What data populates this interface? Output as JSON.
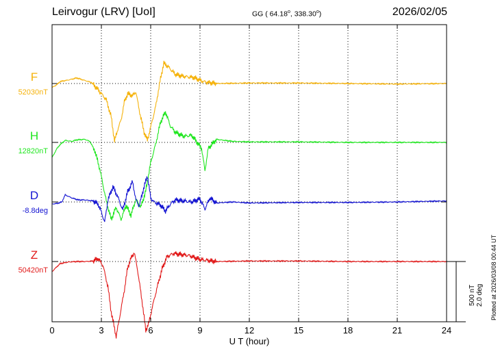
{
  "header": {
    "station": "Leirvogur (LRV)  [UoI]",
    "coords_prefix": "GG ( 64.18",
    "coords_mid": ", 338.30",
    "coords_suffix": ")",
    "degree_symbol": "o",
    "date": "2026/02/05"
  },
  "side": {
    "plotted_at": "Plotted at 2026/03/08 00:44 UT",
    "scale_nt": "500 nT",
    "scale_deg": "2.0 deg"
  },
  "chart_data": {
    "type": "line",
    "title": "",
    "xlabel": "U T (hour)",
    "xlim": [
      0,
      24
    ],
    "x_ticks": [
      0,
      3,
      6,
      9,
      12,
      15,
      18,
      21,
      24
    ],
    "grid": true,
    "series": [
      {
        "name": "F",
        "baseline_label": "52030nT",
        "color": "#f5b20a",
        "points": [
          [
            0,
            -40
          ],
          [
            0.3,
            -10
          ],
          [
            0.5,
            20
          ],
          [
            1,
            35
          ],
          [
            1.5,
            55
          ],
          [
            2,
            30
          ],
          [
            2.4,
            10
          ],
          [
            2.8,
            -60
          ],
          [
            3,
            -100
          ],
          [
            3.3,
            -160
          ],
          [
            3.6,
            -330
          ],
          [
            3.8,
            -570
          ],
          [
            4,
            -450
          ],
          [
            4.2,
            -360
          ],
          [
            4.4,
            -180
          ],
          [
            4.6,
            -100
          ],
          [
            4.9,
            -120
          ],
          [
            5.1,
            -80
          ],
          [
            5.3,
            -260
          ],
          [
            5.6,
            -480
          ],
          [
            5.8,
            -560
          ],
          [
            6,
            -430
          ],
          [
            6.3,
            -230
          ],
          [
            6.6,
            50
          ],
          [
            6.8,
            200
          ],
          [
            7.1,
            160
          ],
          [
            7.5,
            90
          ],
          [
            8,
            70
          ],
          [
            8.6,
            60
          ],
          [
            9.2,
            20
          ],
          [
            9.5,
            10
          ],
          [
            10,
            0
          ],
          [
            12,
            5
          ],
          [
            15,
            5
          ],
          [
            18,
            0
          ],
          [
            21,
            -5
          ],
          [
            24,
            0
          ]
        ]
      },
      {
        "name": "H",
        "baseline_label": "12820nT",
        "color": "#1ee61e",
        "points": [
          [
            0,
            -150
          ],
          [
            0.3,
            -60
          ],
          [
            0.5,
            -20
          ],
          [
            0.8,
            20
          ],
          [
            1.2,
            10
          ],
          [
            1.5,
            25
          ],
          [
            2,
            30
          ],
          [
            2.3,
            10
          ],
          [
            2.6,
            -80
          ],
          [
            2.9,
            -260
          ],
          [
            3.1,
            -420
          ],
          [
            3.3,
            -580
          ],
          [
            3.6,
            -760
          ],
          [
            3.9,
            -640
          ],
          [
            4.2,
            -760
          ],
          [
            4.5,
            -620
          ],
          [
            4.8,
            -720
          ],
          [
            5.1,
            -560
          ],
          [
            5.4,
            -640
          ],
          [
            5.7,
            -480
          ],
          [
            6,
            -200
          ],
          [
            6.3,
            -20
          ],
          [
            6.6,
            200
          ],
          [
            6.9,
            300
          ],
          [
            7.2,
            160
          ],
          [
            7.5,
            100
          ],
          [
            8,
            60
          ],
          [
            8.5,
            70
          ],
          [
            9.1,
            -60
          ],
          [
            9.3,
            -280
          ],
          [
            9.5,
            -60
          ],
          [
            10,
            30
          ],
          [
            11,
            10
          ],
          [
            12,
            5
          ],
          [
            15,
            5
          ],
          [
            18,
            0
          ],
          [
            21,
            0
          ],
          [
            24,
            0
          ]
        ]
      },
      {
        "name": "D",
        "baseline_label": "-8.8deg",
        "color": "#1414d2",
        "points": [
          [
            0,
            -20
          ],
          [
            0.3,
            -15
          ],
          [
            0.6,
            0
          ],
          [
            0.8,
            70
          ],
          [
            1.2,
            40
          ],
          [
            1.6,
            20
          ],
          [
            2,
            20
          ],
          [
            2.5,
            10
          ],
          [
            2.8,
            -20
          ],
          [
            3,
            -100
          ],
          [
            3.2,
            -200
          ],
          [
            3.4,
            20
          ],
          [
            3.7,
            150
          ],
          [
            4,
            50
          ],
          [
            4.3,
            -80
          ],
          [
            4.6,
            100
          ],
          [
            4.9,
            200
          ],
          [
            5.1,
            20
          ],
          [
            5.3,
            -40
          ],
          [
            5.6,
            150
          ],
          [
            5.8,
            260
          ],
          [
            6,
            40
          ],
          [
            6.2,
            0
          ],
          [
            6.6,
            -30
          ],
          [
            6.9,
            -90
          ],
          [
            7.2,
            -20
          ],
          [
            7.5,
            20
          ],
          [
            8,
            10
          ],
          [
            8.5,
            0
          ],
          [
            9,
            30
          ],
          [
            9.3,
            -70
          ],
          [
            9.6,
            40
          ],
          [
            10,
            -10
          ],
          [
            11,
            0
          ],
          [
            12,
            -10
          ],
          [
            15,
            -5
          ],
          [
            18,
            -5
          ],
          [
            21,
            0
          ],
          [
            24,
            10
          ]
        ]
      },
      {
        "name": "Z",
        "baseline_label": "50420nT",
        "color": "#e11919",
        "points": [
          [
            0,
            -100
          ],
          [
            0.3,
            -50
          ],
          [
            0.5,
            -20
          ],
          [
            1,
            -5
          ],
          [
            1.5,
            0
          ],
          [
            2,
            0
          ],
          [
            2.5,
            5
          ],
          [
            2.8,
            30
          ],
          [
            3.1,
            -40
          ],
          [
            3.4,
            -250
          ],
          [
            3.6,
            -500
          ],
          [
            3.9,
            -740
          ],
          [
            4.1,
            -560
          ],
          [
            4.4,
            -280
          ],
          [
            4.6,
            -60
          ],
          [
            4.8,
            30
          ],
          [
            5,
            90
          ],
          [
            5.2,
            -80
          ],
          [
            5.5,
            -420
          ],
          [
            5.7,
            -680
          ],
          [
            5.9,
            -600
          ],
          [
            6.1,
            -450
          ],
          [
            6.4,
            -250
          ],
          [
            6.7,
            -70
          ],
          [
            7,
            50
          ],
          [
            7.4,
            80
          ],
          [
            7.8,
            70
          ],
          [
            8.3,
            60
          ],
          [
            9,
            20
          ],
          [
            9.5,
            10
          ],
          [
            10,
            0
          ],
          [
            12,
            5
          ],
          [
            15,
            5
          ],
          [
            18,
            0
          ],
          [
            21,
            0
          ],
          [
            24,
            0
          ]
        ]
      }
    ]
  }
}
